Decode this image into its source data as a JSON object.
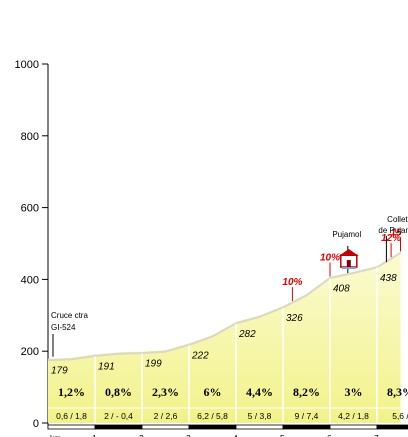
{
  "chart_data": {
    "type": "area",
    "title": "",
    "xlabel": "",
    "ylabel": "",
    "ylim": [
      0,
      1000
    ],
    "y_ticks": [
      0,
      200,
      400,
      600,
      800,
      1000
    ],
    "y_tick_labels": [
      "0",
      "200",
      "400",
      "600",
      "800",
      "1000"
    ],
    "x_tick_labels": [
      "km",
      "1",
      "2",
      "3",
      "4",
      "5",
      "6",
      "7"
    ],
    "grid": false,
    "colors": {
      "fill": "#f2f28a",
      "fill_light": "#fbfbd2",
      "line": "#000000",
      "grade_red": "#e00000",
      "km_band_dark": "#000000",
      "km_band_light": "#ffffff"
    },
    "profile": {
      "x_km": [
        0,
        0.5,
        1,
        1.5,
        2,
        2.5,
        3,
        3.5,
        4,
        4.5,
        5,
        5.5,
        6,
        6.5,
        7,
        7.5
      ],
      "altitude_m": [
        179,
        182,
        191,
        197,
        199,
        203,
        222,
        245,
        282,
        300,
        326,
        360,
        408,
        422,
        438,
        478
      ]
    },
    "km_markers": [
      {
        "km": 0,
        "altitude": "179"
      },
      {
        "km": 1,
        "altitude": "191"
      },
      {
        "km": 2,
        "altitude": "199"
      },
      {
        "km": 3,
        "altitude": "222"
      },
      {
        "km": 4,
        "altitude": "282"
      },
      {
        "km": 5,
        "altitude": "326"
      },
      {
        "km": 6,
        "altitude": "408"
      },
      {
        "km": 7,
        "altitude": "438"
      }
    ],
    "segments": [
      {
        "km_start": 0,
        "gradient": "1,2%",
        "distance": "0,6 / 1,8"
      },
      {
        "km_start": 1,
        "gradient": "0,8%",
        "distance": "2  / - 0,4"
      },
      {
        "km_start": 2,
        "gradient": "2,3%",
        "distance": "2  /  2,6"
      },
      {
        "km_start": 3,
        "gradient": "6%",
        "distance": "6,2 / 5,8"
      },
      {
        "km_start": 4,
        "gradient": "4,4%",
        "distance": "5  /  3,8"
      },
      {
        "km_start": 5,
        "gradient": "8,2%",
        "distance": "9  /  7,4"
      },
      {
        "km_start": 6,
        "gradient": "3%",
        "distance": "4,2 / 1,8"
      },
      {
        "km_start": 7,
        "gradient": "8,3%",
        "distance": "5,6  /"
      }
    ],
    "max_grade_flags": [
      {
        "km": 5.2,
        "label": "10%"
      },
      {
        "km": 6.0,
        "label": "10%"
      },
      {
        "km": 7.3,
        "label": "12%"
      },
      {
        "km": 7.5,
        "label": "15"
      }
    ],
    "annotations": [
      {
        "name": "start",
        "km": 0,
        "text_lines": [
          "Cruce ctra",
          "GI-524"
        ]
      },
      {
        "name": "pujamol",
        "km": 6.4,
        "text_lines": [
          "Pujamol"
        ]
      },
      {
        "name": "collet",
        "km": 7.2,
        "text_lines": [
          "Collet",
          "de Pujamol"
        ]
      }
    ]
  }
}
